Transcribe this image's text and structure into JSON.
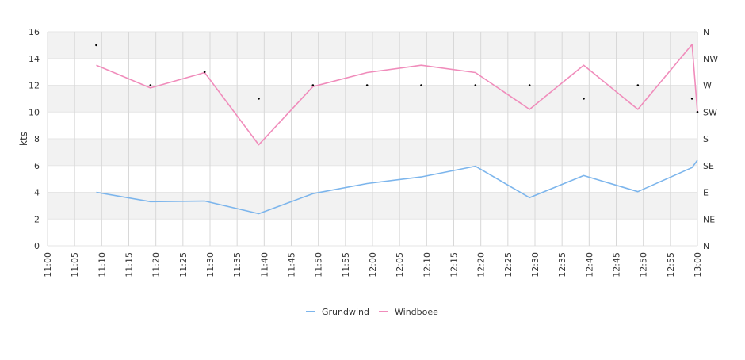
{
  "chart_data": {
    "type": "line",
    "ylabel": "kts",
    "ylim": [
      0,
      16
    ],
    "y_ticks": [
      "0",
      "2",
      "4",
      "6",
      "8",
      "10",
      "12",
      "14",
      "16"
    ],
    "y2_ticks": [
      "N",
      "NE",
      "E",
      "SE",
      "S",
      "SW",
      "W",
      "NW",
      "N"
    ],
    "x_range": [
      "11:00",
      "13:00"
    ],
    "x_ticks": [
      "11:00",
      "11:05",
      "11:10",
      "11:15",
      "11:20",
      "11:25",
      "11:30",
      "11:35",
      "11:40",
      "11:45",
      "11:50",
      "11:55",
      "12:00",
      "12:05",
      "12:10",
      "12:15",
      "12:20",
      "12:25",
      "12:30",
      "12:35",
      "12:40",
      "12:45",
      "12:50",
      "12:55",
      "13:00"
    ],
    "grid": true,
    "legend_position": "bottom-center",
    "series": [
      {
        "name": "Grundwind",
        "color": "#7cb5ec",
        "x": [
          "11:09",
          "11:19",
          "11:29",
          "11:39",
          "11:49",
          "11:59",
          "12:09",
          "12:19",
          "12:29",
          "12:39",
          "12:49",
          "12:59",
          "13:00"
        ],
        "values": [
          4.0,
          3.3,
          3.35,
          2.4,
          3.9,
          4.65,
          5.15,
          5.95,
          3.6,
          5.25,
          4.05,
          5.85,
          6.4
        ]
      },
      {
        "name": "Windboee",
        "color": "#f08cbb",
        "x": [
          "11:09",
          "11:19",
          "11:29",
          "11:39",
          "11:49",
          "11:59",
          "12:09",
          "12:19",
          "12:29",
          "12:39",
          "12:49",
          "12:59",
          "13:00"
        ],
        "values": [
          13.5,
          11.8,
          12.95,
          7.55,
          11.9,
          12.95,
          13.5,
          12.95,
          10.2,
          13.5,
          10.2,
          15.05,
          10.0
        ]
      }
    ],
    "direction_markers": {
      "x": [
        "11:09",
        "11:19",
        "11:29",
        "11:39",
        "11:49",
        "11:59",
        "12:09",
        "12:19",
        "12:29",
        "12:39",
        "12:49",
        "12:59",
        "13:00"
      ],
      "values": [
        15,
        12,
        13,
        11,
        12,
        12,
        12,
        12,
        12,
        11,
        12,
        11,
        10
      ],
      "color": "#000000"
    }
  }
}
